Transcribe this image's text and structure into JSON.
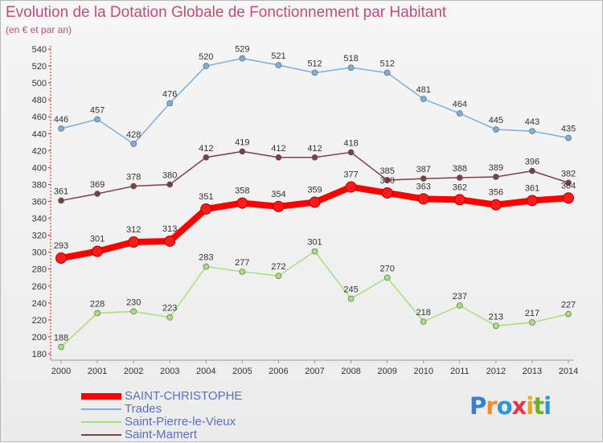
{
  "chart_data": {
    "type": "line",
    "title": "Evolution de la Dotation Globale de Fonctionnement par Habitant",
    "subtitle": "(en € et par an)",
    "xlabel": "",
    "ylabel": "",
    "x": [
      "2000",
      "2001",
      "2002",
      "2003",
      "2004",
      "2005",
      "2006",
      "2007",
      "2008",
      "2009",
      "2010",
      "2011",
      "2012",
      "2013",
      "2014"
    ],
    "ylim": [
      180,
      540
    ],
    "yticks": [
      180,
      200,
      220,
      240,
      260,
      280,
      300,
      320,
      340,
      360,
      380,
      400,
      420,
      440,
      460,
      480,
      500,
      520,
      540
    ],
    "grid": false,
    "legend_position": "bottom-left",
    "series": [
      {
        "name": "SAINT-CHRISTOPHE",
        "color": "#ff0000",
        "values": [
          293,
          301,
          312,
          313,
          351,
          358,
          354,
          359,
          377,
          370,
          363,
          362,
          356,
          361,
          364
        ]
      },
      {
        "name": "Trades",
        "color": "#7bafe0",
        "values": [
          446,
          457,
          428,
          476,
          520,
          529,
          521,
          512,
          518,
          512,
          481,
          464,
          445,
          443,
          435
        ]
      },
      {
        "name": "Saint-Pierre-le-Vieux",
        "color": "#a6e07a",
        "values": [
          188,
          228,
          230,
          223,
          283,
          277,
          272,
          301,
          245,
          270,
          218,
          237,
          213,
          217,
          227
        ]
      },
      {
        "name": "Saint-Mamert",
        "color": "#7d3e44",
        "values": [
          361,
          369,
          378,
          380,
          412,
          419,
          412,
          412,
          418,
          385,
          387,
          388,
          389,
          396,
          382
        ]
      }
    ]
  },
  "brand": {
    "letters": [
      "P",
      "r",
      "o",
      "x",
      "i",
      "t",
      "i"
    ],
    "colors": [
      "#3a7fd0",
      "#ff8a1a",
      "#2a98d8",
      "#e23a4a",
      "#f2a412",
      "#6ab32e",
      "#2a98d8"
    ]
  }
}
